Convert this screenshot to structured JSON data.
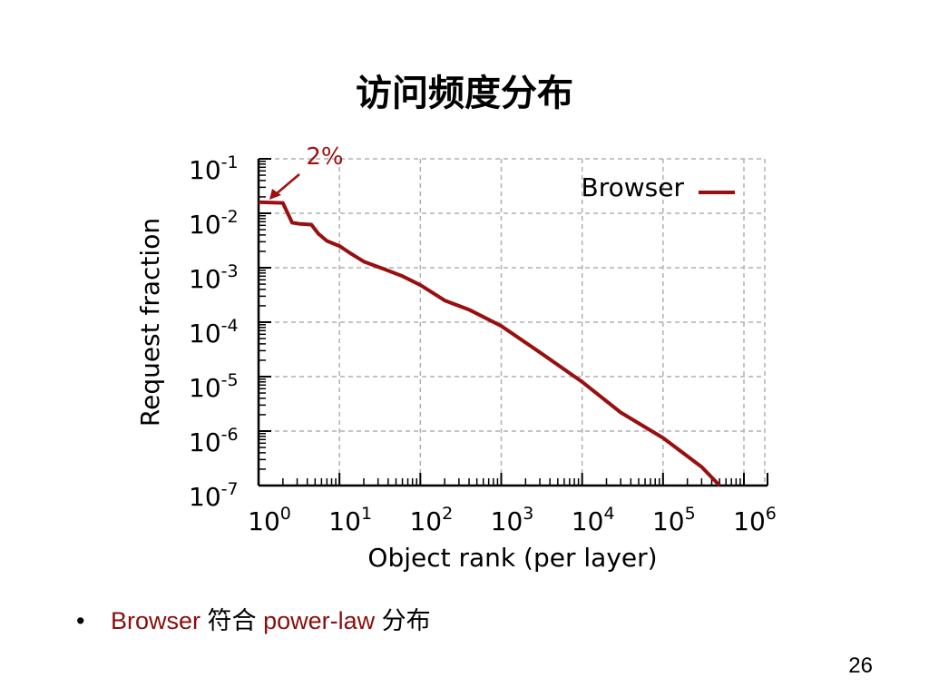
{
  "slide": {
    "title": "访问频度分布",
    "bullet": {
      "marker": "•",
      "parts": [
        "Browser",
        "符合",
        "power-law",
        "分布"
      ]
    },
    "page_number": "26"
  },
  "colors": {
    "series": "#990f0f",
    "grid": "#b0b0b0",
    "annotation": "#9e1010"
  },
  "chart_data": {
    "type": "line",
    "xscale": "log",
    "yscale": "log",
    "xlabel": "Object rank (per layer)",
    "ylabel": "Request fraction",
    "xlim": [
      1,
      1000000
    ],
    "ylim": [
      1e-07,
      0.1
    ],
    "x_ticks": [
      {
        "base": "10",
        "exp": "0"
      },
      {
        "base": "10",
        "exp": "1"
      },
      {
        "base": "10",
        "exp": "2"
      },
      {
        "base": "10",
        "exp": "3"
      },
      {
        "base": "10",
        "exp": "4"
      },
      {
        "base": "10",
        "exp": "5"
      },
      {
        "base": "10",
        "exp": "6"
      }
    ],
    "y_ticks": [
      {
        "base": "10",
        "exp": "-1"
      },
      {
        "base": "10",
        "exp": "-2"
      },
      {
        "base": "10",
        "exp": "-3"
      },
      {
        "base": "10",
        "exp": "-4"
      },
      {
        "base": "10",
        "exp": "-5"
      },
      {
        "base": "10",
        "exp": "-6"
      },
      {
        "base": "10",
        "exp": "-7"
      }
    ],
    "grid": true,
    "legend": {
      "position": "top-right"
    },
    "series": [
      {
        "name": "Browser",
        "points": [
          [
            1,
            0.016
          ],
          [
            2,
            0.0155
          ],
          [
            2.6,
            0.0067
          ],
          [
            3.2,
            0.0064
          ],
          [
            4.5,
            0.0062
          ],
          [
            5.5,
            0.0042
          ],
          [
            7,
            0.0031
          ],
          [
            10,
            0.0025
          ],
          [
            14,
            0.0018
          ],
          [
            20,
            0.0013
          ],
          [
            35,
            0.00095
          ],
          [
            60,
            0.0007
          ],
          [
            100,
            0.00048
          ],
          [
            150,
            0.00033
          ],
          [
            200,
            0.00025
          ],
          [
            400,
            0.00017
          ],
          [
            1000,
            8.5e-05
          ],
          [
            3000,
            2.8e-05
          ],
          [
            10000,
            8e-06
          ],
          [
            30000,
            2.2e-06
          ],
          [
            100000,
            7.5e-07
          ],
          [
            300000,
            2.2e-07
          ],
          [
            500000,
            1e-07
          ]
        ]
      }
    ],
    "annotations": [
      {
        "text": "2%",
        "x": 1,
        "y": 0.016
      }
    ]
  }
}
